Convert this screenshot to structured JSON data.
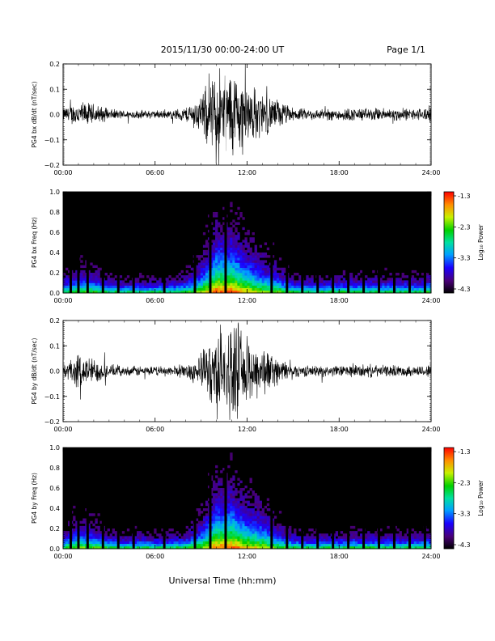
{
  "header": {
    "title": "2015/11/30  00:00-24:00 UT",
    "page": "Page 1/1"
  },
  "footer": {
    "xlabel": "Universal Time (hh:mm)"
  },
  "chart_data": [
    {
      "type": "line",
      "ylabel": "PG4 bx dB/dt (nT/sec)",
      "xlim": [
        0,
        24
      ],
      "ylim": [
        -0.2,
        0.2
      ],
      "y_tick_labels": [
        "0.2",
        "0.1",
        "0.0",
        "−0.1",
        "−0.2"
      ],
      "x_tick_labels": [
        "00:00",
        "06:00",
        "12:00",
        "18:00",
        "24:00"
      ],
      "envelope": {
        "hours": [
          0,
          1,
          2,
          3,
          4,
          5,
          6,
          7,
          8,
          9,
          10,
          11,
          12,
          13,
          14,
          15,
          16,
          17,
          18,
          19,
          20,
          21,
          22,
          23,
          24
        ],
        "amplitude": [
          0.03,
          0.06,
          0.05,
          0.025,
          0.02,
          0.02,
          0.02,
          0.02,
          0.035,
          0.09,
          0.22,
          0.22,
          0.15,
          0.1,
          0.07,
          0.03,
          0.025,
          0.025,
          0.03,
          0.03,
          0.03,
          0.03,
          0.03,
          0.025,
          0.04
        ]
      }
    },
    {
      "type": "heatmap",
      "ylabel": "PG4 bx Freq (Hz)",
      "xlim": [
        0,
        24
      ],
      "ylim": [
        0,
        1
      ],
      "y_tick_labels": [
        "1.0",
        "0.8",
        "0.6",
        "0.4",
        "0.2",
        "0.0"
      ],
      "x_tick_labels": [
        "00:00",
        "06:00",
        "12:00",
        "18:00",
        "24:00"
      ],
      "colorbar": {
        "label": "Log₁₀ Power",
        "range": [
          -4.3,
          -1.3
        ],
        "tick_labels": [
          "-1.3",
          "-2.3",
          "-3.3",
          "-4.3"
        ]
      },
      "gap_hours": [
        0.5,
        1.0,
        1.6,
        2.6,
        3.6,
        4.6,
        6.6,
        8.6,
        9.6,
        10.6,
        13.6,
        14.6,
        15.6,
        16.6,
        17.6,
        18.6,
        19.6,
        20.6,
        21.6,
        22.6,
        23.6
      ]
    },
    {
      "type": "line",
      "ylabel": "PG4 by dB/dt (nT/sec)",
      "xlim": [
        0,
        24
      ],
      "ylim": [
        -0.2,
        0.2
      ],
      "y_tick_labels": [
        "0.2",
        "0.1",
        "0.0",
        "−0.1",
        "−0.2"
      ],
      "x_tick_labels": [
        "00:00",
        "06:00",
        "12:00",
        "18:00",
        "24:00"
      ],
      "envelope": {
        "hours": [
          0,
          1,
          2,
          3,
          4,
          5,
          6,
          7,
          8,
          9,
          10,
          11,
          12,
          13,
          14,
          15,
          16,
          17,
          18,
          19,
          20,
          21,
          22,
          23,
          24
        ],
        "amplitude": [
          0.03,
          0.08,
          0.06,
          0.03,
          0.02,
          0.025,
          0.02,
          0.025,
          0.03,
          0.08,
          0.2,
          0.22,
          0.15,
          0.12,
          0.06,
          0.03,
          0.025,
          0.025,
          0.025,
          0.03,
          0.03,
          0.025,
          0.025,
          0.025,
          0.03
        ]
      }
    },
    {
      "type": "heatmap",
      "ylabel": "PG4 by Freq (Hz)",
      "xlim": [
        0,
        24
      ],
      "ylim": [
        0,
        1
      ],
      "y_tick_labels": [
        "1.0",
        "0.8",
        "0.6",
        "0.4",
        "0.2",
        "0.0"
      ],
      "x_tick_labels": [
        "00:00",
        "06:00",
        "12:00",
        "18:00",
        "24:00"
      ],
      "colorbar": {
        "label": "Log₁₀ Power",
        "range": [
          -4.3,
          -1.3
        ],
        "tick_labels": [
          "-1.3",
          "-2.3",
          "-3.3",
          "-4.3"
        ]
      },
      "gap_hours": [
        0.5,
        1.0,
        1.6,
        2.6,
        3.6,
        4.6,
        6.6,
        8.6,
        9.6,
        10.6,
        13.6,
        14.6,
        15.6,
        16.6,
        17.6,
        18.6,
        19.6,
        20.6,
        21.6,
        22.6,
        23.6
      ]
    }
  ]
}
